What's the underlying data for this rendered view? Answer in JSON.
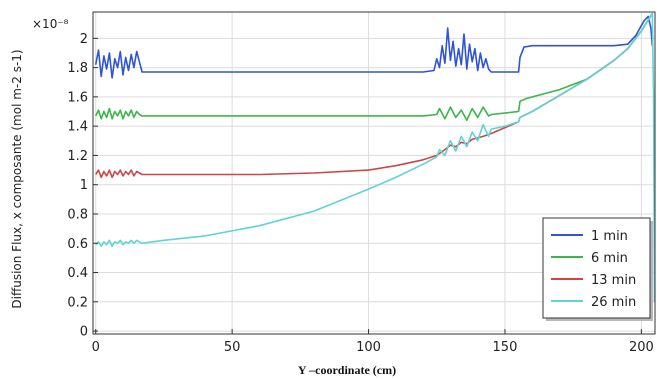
{
  "chart_data": {
    "type": "line",
    "title": "",
    "xlabel": "Y –coordinate (cm)",
    "ylabel": "Diffusion Flux, x composante (mol m-2 s-1)",
    "y_exponent_label": "×10⁻⁸",
    "xlim": [
      -1,
      205
    ],
    "ylim": [
      -0.02,
      2.18
    ],
    "x_ticks": [
      0,
      50,
      100,
      150,
      200
    ],
    "x_tick_labels": [
      "0",
      "50",
      "100",
      "150",
      "200"
    ],
    "y_ticks": [
      0,
      0.2,
      0.4,
      0.6,
      0.8,
      1,
      1.2,
      1.4,
      1.6,
      1.8,
      2
    ],
    "y_tick_labels": [
      "0",
      "0.2",
      "0.4",
      "0.6",
      "0.8",
      "1",
      "1.2",
      "1.4",
      "1.6",
      "1.8",
      "2"
    ],
    "grid": true,
    "legend_position": "bottom-right",
    "series": [
      {
        "name": "1 min",
        "color": "#2f55d4",
        "x": [
          0,
          1,
          2,
          3,
          4,
          5,
          6,
          7,
          8,
          9,
          10,
          11,
          12,
          13,
          14,
          15,
          16,
          17,
          40,
          80,
          120,
          124,
          125,
          126,
          127,
          128,
          129,
          130,
          131,
          132,
          133,
          134,
          135,
          136,
          137,
          138,
          139,
          140,
          141,
          142,
          143,
          144,
          145,
          150,
          155,
          155.5,
          157,
          160,
          170,
          180,
          190,
          195,
          198,
          201,
          202.5,
          203.5,
          204
        ],
        "y": [
          1.82,
          1.92,
          1.74,
          1.88,
          1.79,
          1.9,
          1.73,
          1.86,
          1.8,
          1.91,
          1.75,
          1.87,
          1.78,
          1.89,
          1.8,
          1.91,
          1.84,
          1.77,
          1.77,
          1.77,
          1.77,
          1.78,
          1.86,
          1.8,
          1.95,
          1.83,
          2.07,
          1.85,
          1.98,
          1.81,
          1.93,
          1.82,
          2.03,
          1.79,
          1.96,
          1.84,
          1.93,
          1.78,
          1.9,
          1.8,
          1.86,
          1.79,
          1.77,
          1.77,
          1.77,
          1.87,
          1.94,
          1.95,
          1.95,
          1.95,
          1.95,
          1.96,
          2.02,
          2.12,
          2.15,
          2.07,
          1.95
        ]
      },
      {
        "name": "6 min",
        "color": "#3cb54a",
        "x": [
          0,
          1,
          2,
          3,
          4,
          5,
          6,
          7,
          8,
          9,
          10,
          11,
          12,
          13,
          14,
          15,
          16,
          17,
          60,
          120,
          125,
          126,
          128,
          130,
          132,
          134,
          136,
          138,
          140,
          142,
          144,
          145,
          155,
          155.5,
          158,
          170,
          180,
          190,
          195,
          200,
          203,
          204
        ],
        "y": [
          1.47,
          1.51,
          1.45,
          1.5,
          1.46,
          1.52,
          1.45,
          1.5,
          1.47,
          1.51,
          1.45,
          1.5,
          1.47,
          1.51,
          1.46,
          1.5,
          1.48,
          1.47,
          1.47,
          1.47,
          1.48,
          1.52,
          1.45,
          1.53,
          1.46,
          1.51,
          1.44,
          1.52,
          1.46,
          1.53,
          1.47,
          1.48,
          1.5,
          1.57,
          1.59,
          1.65,
          1.72,
          1.85,
          1.93,
          2.05,
          2.14,
          2.17
        ]
      },
      {
        "name": "13 min",
        "color": "#cc4646",
        "x": [
          0,
          1,
          2,
          3,
          4,
          5,
          6,
          7,
          8,
          9,
          10,
          11,
          12,
          13,
          14,
          15,
          16,
          17,
          40,
          60,
          80,
          100,
          110,
          120,
          125,
          128,
          130,
          132,
          134,
          136,
          138,
          140,
          142,
          145,
          150,
          155,
          155.5,
          160,
          170,
          180,
          190,
          195,
          200,
          203,
          204
        ],
        "y": [
          1.07,
          1.1,
          1.05,
          1.09,
          1.06,
          1.1,
          1.05,
          1.09,
          1.07,
          1.1,
          1.06,
          1.09,
          1.07,
          1.1,
          1.06,
          1.09,
          1.08,
          1.07,
          1.07,
          1.07,
          1.08,
          1.1,
          1.13,
          1.17,
          1.2,
          1.24,
          1.27,
          1.26,
          1.29,
          1.28,
          1.31,
          1.32,
          1.33,
          1.35,
          1.39,
          1.43,
          1.46,
          1.5,
          1.61,
          1.72,
          1.85,
          1.93,
          2.05,
          2.14,
          2.17
        ]
      },
      {
        "name": "26 min",
        "color": "#5fd3d6",
        "x": [
          0,
          1,
          2,
          3,
          4,
          5,
          6,
          7,
          8,
          9,
          10,
          11,
          12,
          13,
          14,
          15,
          16,
          17,
          25,
          40,
          60,
          80,
          100,
          110,
          120,
          125,
          126,
          128,
          130,
          132,
          134,
          136,
          138,
          140,
          142,
          144,
          145,
          150,
          155,
          155.5,
          160,
          170,
          180,
          190,
          195,
          200,
          203,
          204,
          204.5,
          204.8
        ],
        "y": [
          0.59,
          0.61,
          0.58,
          0.61,
          0.59,
          0.62,
          0.58,
          0.61,
          0.6,
          0.62,
          0.59,
          0.61,
          0.6,
          0.62,
          0.6,
          0.62,
          0.61,
          0.6,
          0.62,
          0.65,
          0.72,
          0.82,
          0.97,
          1.05,
          1.14,
          1.19,
          1.24,
          1.2,
          1.3,
          1.23,
          1.33,
          1.26,
          1.36,
          1.3,
          1.41,
          1.33,
          1.38,
          1.4,
          1.43,
          1.46,
          1.5,
          1.61,
          1.72,
          1.85,
          1.93,
          2.05,
          2.14,
          2.17,
          1.6,
          0.2
        ]
      }
    ]
  }
}
